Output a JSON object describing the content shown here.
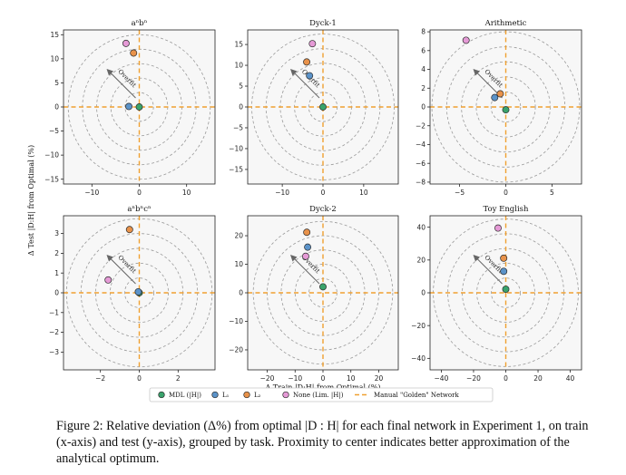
{
  "figure": {
    "ylabel": "Δ Test |D:H| from Optimal (%)",
    "xlabel": "Δ Train |D:H| from Optimal (%)",
    "overfit_label": "Overfit",
    "legend": [
      {
        "label": "MDL (|H|)",
        "type": "marker",
        "color": "#3aa36c"
      },
      {
        "label": "L₁",
        "type": "marker",
        "color": "#5b93c9"
      },
      {
        "label": "L₂",
        "type": "marker",
        "color": "#e8924a"
      },
      {
        "label": "None (Lim. |H|)",
        "type": "marker",
        "color": "#e59ad6"
      },
      {
        "label": "Manual \"Golden\" Network",
        "type": "dashed-line",
        "color": "#f0a030"
      }
    ]
  },
  "chart_data": [
    {
      "type": "scatter",
      "title": "aⁿbⁿ",
      "xlim": [
        -16,
        16
      ],
      "ylim": [
        -16,
        16
      ],
      "xticks": [
        -10,
        0,
        10
      ],
      "yticks": [
        -15,
        -10,
        -5,
        0,
        5,
        10,
        15
      ],
      "rings": [
        3,
        6,
        9,
        12,
        15
      ],
      "points": [
        {
          "series": "MDL (|H|)",
          "x": 0,
          "y": 0
        },
        {
          "series": "L₁",
          "x": -2.2,
          "y": 0.1
        },
        {
          "series": "L₂",
          "x": -1.2,
          "y": 11.2
        },
        {
          "series": "None (Lim. |H|)",
          "x": -2.8,
          "y": 13.2
        }
      ]
    },
    {
      "type": "scatter",
      "title": "Dyck-1",
      "xlim": [
        -18.5,
        18.5
      ],
      "ylim": [
        -18.5,
        18.5
      ],
      "xticks": [
        -10,
        0,
        10
      ],
      "yticks": [
        -15,
        -10,
        -5,
        0,
        5,
        10,
        15
      ],
      "rings": [
        3.5,
        7,
        10.5,
        14,
        17.5
      ],
      "points": [
        {
          "series": "MDL (|H|)",
          "x": 0,
          "y": 0
        },
        {
          "series": "L₁",
          "x": -3.3,
          "y": 7.5
        },
        {
          "series": "L₂",
          "x": -4,
          "y": 10.8
        },
        {
          "series": "None (Lim. |H|)",
          "x": -2.6,
          "y": 15.2
        }
      ]
    },
    {
      "type": "scatter",
      "title": "Arithmetic",
      "xlim": [
        -8.2,
        8.2
      ],
      "ylim": [
        -8.2,
        8.2
      ],
      "xticks": [
        -5,
        0,
        5
      ],
      "yticks": [
        -8,
        -6,
        -4,
        -2,
        0,
        2,
        4,
        6,
        8
      ],
      "rings": [
        1.6,
        3.2,
        4.8,
        6.4,
        8
      ],
      "points": [
        {
          "series": "MDL (|H|)",
          "x": 0,
          "y": -0.3
        },
        {
          "series": "L₁",
          "x": -1.2,
          "y": 1
        },
        {
          "series": "L₂",
          "x": -0.6,
          "y": 1.4
        },
        {
          "series": "None (Lim. |H|)",
          "x": -4.3,
          "y": 7.1
        }
      ]
    },
    {
      "type": "scatter",
      "title": "aⁿbⁿcⁿ",
      "xlim": [
        -3.9,
        3.9
      ],
      "ylim": [
        -3.9,
        3.9
      ],
      "xticks": [
        -2,
        0,
        2
      ],
      "yticks": [
        -3,
        -2,
        -1,
        0,
        1,
        2,
        3
      ],
      "rings": [
        0.75,
        1.5,
        2.25,
        3,
        3.75
      ],
      "points": [
        {
          "series": "MDL (|H|)",
          "x": 0,
          "y": 0
        },
        {
          "series": "L₁",
          "x": -0.05,
          "y": 0.05
        },
        {
          "series": "L₂",
          "x": -0.5,
          "y": 3.2
        },
        {
          "series": "None (Lim. |H|)",
          "x": -1.6,
          "y": 0.65
        }
      ]
    },
    {
      "type": "scatter",
      "title": "Dyck-2",
      "xlim": [
        -27,
        27
      ],
      "ylim": [
        -27,
        27
      ],
      "xticks": [
        -20,
        -10,
        0,
        10,
        20
      ],
      "yticks": [
        -20,
        -10,
        0,
        10,
        20
      ],
      "rings": [
        5,
        10,
        15,
        20,
        25
      ],
      "points": [
        {
          "series": "MDL (|H|)",
          "x": 0,
          "y": 2.1
        },
        {
          "series": "L₁",
          "x": -5.5,
          "y": 16
        },
        {
          "series": "L₂",
          "x": -5.8,
          "y": 21.2
        },
        {
          "series": "None (Lim. |H|)",
          "x": -6.2,
          "y": 12.8
        }
      ]
    },
    {
      "type": "scatter",
      "title": "Toy English",
      "xlim": [
        -47,
        47
      ],
      "ylim": [
        -47,
        47
      ],
      "xticks": [
        -40,
        -20,
        0,
        20,
        40
      ],
      "yticks": [
        -40,
        -20,
        0,
        20,
        40
      ],
      "rings": [
        9,
        18,
        27,
        36,
        45
      ],
      "points": [
        {
          "series": "MDL (|H|)",
          "x": 0,
          "y": 2.2
        },
        {
          "series": "L₁",
          "x": -1.3,
          "y": 13.1
        },
        {
          "series": "L₂",
          "x": -1.3,
          "y": 21.1
        },
        {
          "series": "None (Lim. |H|)",
          "x": -4.8,
          "y": 39.5
        }
      ]
    }
  ],
  "caption": {
    "text": "Figure 2: Relative deviation (Δ%) from optimal |D : H| for each final network in Experiment 1, on train (x-axis) and test (y-axis), grouped by task. Proximity to center indicates better approximation of the analytical optimum."
  }
}
